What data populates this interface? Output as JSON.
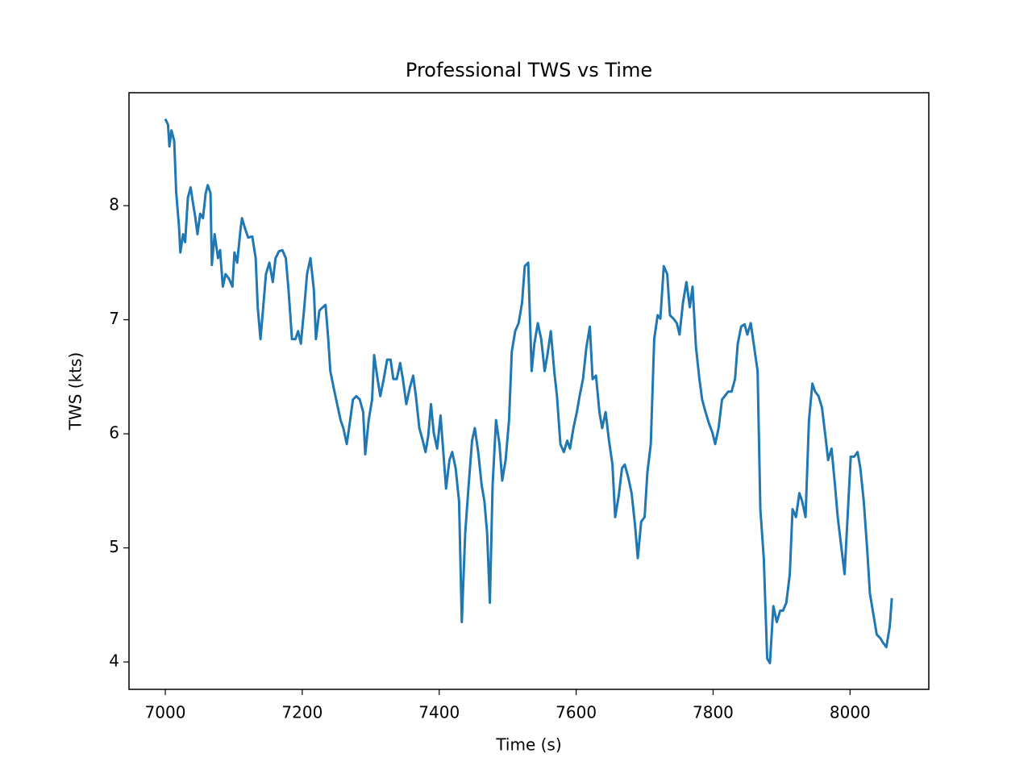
{
  "chart_data": {
    "type": "line",
    "title": "Professional TWS vs Time",
    "x_label": "Time (s)",
    "y_label": "TWS (kts)",
    "xlim": [
      6947,
      8115
    ],
    "ylim": [
      3.76,
      8.99
    ],
    "xticks": [
      7000,
      7200,
      7400,
      7600,
      7800,
      8000
    ],
    "yticks": [
      4,
      5,
      6,
      7,
      8
    ],
    "grid": false,
    "x": [
      7000,
      7004,
      7006,
      7009,
      7013,
      7016,
      7020,
      7022,
      7026,
      7029,
      7033,
      7037,
      7040,
      7044,
      7047,
      7051,
      7055,
      7059,
      7062,
      7066,
      7068,
      7072,
      7077,
      7080,
      7084,
      7088,
      7093,
      7098,
      7101,
      7105,
      7110,
      7112,
      7117,
      7121,
      7127,
      7132,
      7135,
      7139,
      7143,
      7147,
      7152,
      7157,
      7161,
      7166,
      7171,
      7176,
      7180,
      7185,
      7190,
      7194,
      7198,
      7203,
      7207,
      7212,
      7217,
      7220,
      7225,
      7230,
      7234,
      7238,
      7241,
      7246,
      7251,
      7256,
      7260,
      7265,
      7270,
      7274,
      7279,
      7284,
      7289,
      7292,
      7297,
      7302,
      7305,
      7310,
      7314,
      7319,
      7324,
      7329,
      7333,
      7338,
      7343,
      7347,
      7352,
      7357,
      7362,
      7366,
      7371,
      7376,
      7380,
      7384,
      7388,
      7392,
      7397,
      7402,
      7406,
      7410,
      7415,
      7419,
      7424,
      7429,
      7433,
      7438,
      7443,
      7448,
      7452,
      7457,
      7462,
      7466,
      7470,
      7474,
      7478,
      7483,
      7488,
      7492,
      7497,
      7502,
      7506,
      7511,
      7516,
      7521,
      7525,
      7530,
      7535,
      7539,
      7544,
      7549,
      7554,
      7558,
      7563,
      7568,
      7572,
      7577,
      7582,
      7587,
      7591,
      7596,
      7601,
      7605,
      7610,
      7615,
      7620,
      7624,
      7629,
      7634,
      7638,
      7643,
      7648,
      7653,
      7657,
      7662,
      7667,
      7671,
      7676,
      7681,
      7686,
      7690,
      7695,
      7700,
      7704,
      7709,
      7714,
      7719,
      7723,
      7728,
      7733,
      7737,
      7742,
      7747,
      7751,
      7756,
      7761,
      7766,
      7770,
      7775,
      7780,
      7784,
      7789,
      7794,
      7799,
      7803,
      7808,
      7813,
      7817,
      7822,
      7827,
      7832,
      7836,
      7841,
      7846,
      7850,
      7855,
      7860,
      7865,
      7869,
      7874,
      7879,
      7883,
      7888,
      7893,
      7898,
      7902,
      7907,
      7912,
      7916,
      7921,
      7926,
      7930,
      7935,
      7940,
      7945,
      7949,
      7954,
      7959,
      7964,
      7968,
      7973,
      7978,
      7982,
      7987,
      7992,
      7997,
      8001,
      8006,
      8011,
      8015,
      8020,
      8025,
      8029,
      8034,
      8039,
      8044,
      8048,
      8053,
      8058,
      8061
    ],
    "series": [
      {
        "name": "TWS",
        "color": "#1f77b4",
        "values": [
          8.76,
          8.71,
          8.52,
          8.66,
          8.57,
          8.11,
          7.82,
          7.59,
          7.75,
          7.68,
          8.07,
          8.16,
          8.04,
          7.89,
          7.75,
          7.93,
          7.89,
          8.11,
          8.18,
          8.11,
          7.48,
          7.75,
          7.54,
          7.61,
          7.29,
          7.4,
          7.36,
          7.29,
          7.59,
          7.5,
          7.8,
          7.89,
          7.79,
          7.72,
          7.73,
          7.54,
          7.11,
          6.83,
          7.11,
          7.4,
          7.5,
          7.33,
          7.54,
          7.6,
          7.61,
          7.54,
          7.26,
          6.83,
          6.83,
          6.9,
          6.79,
          7.11,
          7.4,
          7.54,
          7.26,
          6.83,
          7.08,
          7.11,
          7.13,
          6.83,
          6.55,
          6.4,
          6.26,
          6.12,
          6.05,
          5.91,
          6.12,
          6.3,
          6.33,
          6.3,
          6.19,
          5.82,
          6.12,
          6.3,
          6.69,
          6.48,
          6.33,
          6.48,
          6.65,
          6.65,
          6.48,
          6.48,
          6.62,
          6.48,
          6.26,
          6.4,
          6.51,
          6.33,
          6.05,
          5.94,
          5.84,
          5.98,
          6.26,
          6.01,
          5.87,
          6.16,
          5.84,
          5.52,
          5.77,
          5.84,
          5.7,
          5.41,
          4.35,
          5.13,
          5.55,
          5.94,
          6.05,
          5.84,
          5.55,
          5.41,
          5.13,
          4.52,
          5.55,
          6.12,
          5.91,
          5.59,
          5.77,
          6.12,
          6.72,
          6.9,
          6.97,
          7.15,
          7.47,
          7.5,
          6.55,
          6.79,
          6.97,
          6.83,
          6.55,
          6.69,
          6.9,
          6.55,
          6.33,
          5.91,
          5.84,
          5.94,
          5.87,
          6.05,
          6.19,
          6.33,
          6.48,
          6.76,
          6.94,
          6.48,
          6.51,
          6.19,
          6.05,
          6.19,
          5.94,
          5.73,
          5.27,
          5.45,
          5.7,
          5.73,
          5.62,
          5.48,
          5.2,
          4.91,
          5.23,
          5.27,
          5.66,
          5.91,
          6.83,
          7.04,
          7.01,
          7.47,
          7.4,
          7.04,
          7.01,
          6.97,
          6.87,
          7.15,
          7.33,
          7.11,
          7.29,
          6.76,
          6.48,
          6.3,
          6.19,
          6.09,
          6.01,
          5.91,
          6.05,
          6.3,
          6.33,
          6.37,
          6.37,
          6.48,
          6.79,
          6.94,
          6.96,
          6.87,
          6.97,
          6.76,
          6.55,
          5.34,
          4.91,
          4.03,
          3.99,
          4.49,
          4.35,
          4.45,
          4.45,
          4.52,
          4.77,
          5.34,
          5.27,
          5.48,
          5.41,
          5.27,
          6.12,
          6.44,
          6.37,
          6.33,
          6.23,
          5.98,
          5.77,
          5.87,
          5.55,
          5.27,
          5.02,
          4.77,
          5.34,
          5.8,
          5.8,
          5.84,
          5.7,
          5.41,
          4.99,
          4.6,
          4.42,
          4.24,
          4.21,
          4.17,
          4.13,
          4.31,
          4.56
        ]
      }
    ]
  }
}
